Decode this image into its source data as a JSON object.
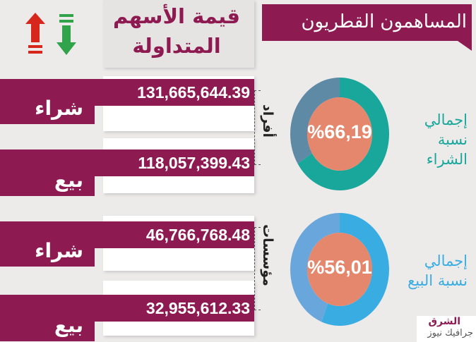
{
  "header": {
    "title": "المساهمون القطريون"
  },
  "values_header": {
    "title": "قيمة الأسهم المتداولة"
  },
  "groups": [
    {
      "name": "أفراد"
    },
    {
      "name": "مؤسسات"
    }
  ],
  "rows": [
    {
      "value": "131,665,644.39",
      "label": "شراء"
    },
    {
      "value": "118,057,399.43",
      "label": "بيع"
    },
    {
      "value": "46,766,768.48",
      "label": "شراء"
    },
    {
      "value": "32,955,612.33",
      "label": "بيع"
    }
  ],
  "chart_data": [
    {
      "type": "pie",
      "caption_line1": "إجمالي",
      "caption_line2": "نسبة الشراء",
      "center_label": "%66,19",
      "values": [
        66.19,
        33.81
      ],
      "colors": [
        "#1aa79b",
        "#5e8aa6"
      ],
      "center_color": "#e5876d",
      "caption_color": "#1aa79b"
    },
    {
      "type": "pie",
      "caption_line1": "إجمالي",
      "caption_line2": "نسبة البيع",
      "center_label": "%56,01",
      "values": [
        56.01,
        43.99
      ],
      "colors": [
        "#39ade2",
        "#69a6dc"
      ],
      "center_color": "#e5876d",
      "caption_color": "#39ade2"
    }
  ],
  "arrows": {
    "up_color": "#d7261c",
    "down_color": "#31a34a",
    "up_icon": "arrow-up-icon",
    "down_icon": "arrow-down-icon"
  },
  "logo": {
    "line1": "الشرق",
    "line2": "جرافيك نيوز"
  },
  "colors": {
    "accent": "#8e1a52"
  }
}
